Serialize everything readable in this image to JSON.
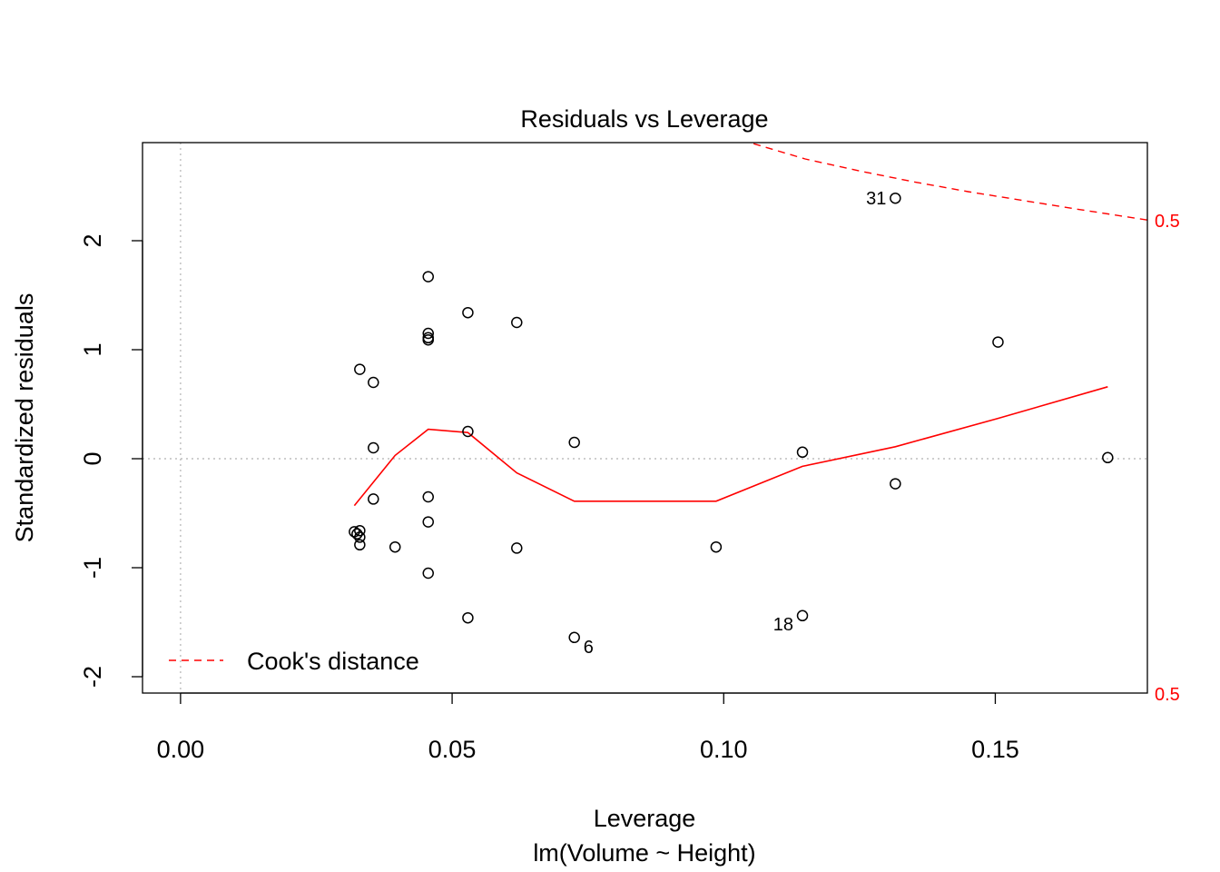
{
  "chart_data": {
    "type": "scatter",
    "title": "Residuals vs Leverage",
    "xlabel": "Leverage",
    "subtitle": "lm(Volume ~ Height)",
    "ylabel": "Standardized residuals",
    "xlim": [
      -0.007,
      0.178
    ],
    "ylim": [
      -2.15,
      2.9
    ],
    "x_ticks": [
      0.0,
      0.05,
      0.1,
      0.15
    ],
    "x_tick_labels": [
      "0.00",
      "0.05",
      "0.10",
      "0.15"
    ],
    "y_ticks": [
      -2,
      -1,
      0,
      1,
      2
    ],
    "y_tick_labels": [
      "-2",
      "-1",
      "0",
      "1",
      "2"
    ],
    "grid": false,
    "reference_lines": {
      "x": 0,
      "y": 0
    },
    "points": [
      {
        "x": 0.0456,
        "y": 1.67
      },
      {
        "x": 0.0529,
        "y": 1.34
      },
      {
        "x": 0.0619,
        "y": 1.25
      },
      {
        "x": 0.0456,
        "y": 1.15
      },
      {
        "x": 0.0456,
        "y": 1.11
      },
      {
        "x": 0.0456,
        "y": 1.09
      },
      {
        "x": 0.033,
        "y": 0.82
      },
      {
        "x": 0.0355,
        "y": 0.7
      },
      {
        "x": 0.0529,
        "y": 0.25
      },
      {
        "x": 0.0725,
        "y": 0.15
      },
      {
        "x": 0.0355,
        "y": 0.1
      },
      {
        "x": 0.0355,
        "y": -0.37
      },
      {
        "x": 0.0456,
        "y": -0.35
      },
      {
        "x": 0.0456,
        "y": -0.58
      },
      {
        "x": 0.032,
        "y": -0.67
      },
      {
        "x": 0.0325,
        "y": -0.69
      },
      {
        "x": 0.033,
        "y": -0.66
      },
      {
        "x": 0.033,
        "y": -0.72
      },
      {
        "x": 0.033,
        "y": -0.79
      },
      {
        "x": 0.0395,
        "y": -0.81
      },
      {
        "x": 0.0619,
        "y": -0.82
      },
      {
        "x": 0.0986,
        "y": -0.81
      },
      {
        "x": 0.0456,
        "y": -1.05
      },
      {
        "x": 0.0529,
        "y": -1.46
      },
      {
        "x": 0.0725,
        "y": -1.64
      },
      {
        "x": 0.1145,
        "y": 0.06
      },
      {
        "x": 0.1145,
        "y": -1.44
      },
      {
        "x": 0.1316,
        "y": -0.23
      },
      {
        "x": 0.1316,
        "y": 2.39
      },
      {
        "x": 0.1505,
        "y": 1.07
      },
      {
        "x": 0.1707,
        "y": 0.01
      }
    ],
    "point_labels": [
      {
        "text": "31",
        "x": 0.1316,
        "y": 2.39,
        "side": "left"
      },
      {
        "text": "6",
        "x": 0.0725,
        "y": -1.64,
        "side": "right-below"
      },
      {
        "text": "18",
        "x": 0.1145,
        "y": -1.44,
        "side": "left-below"
      }
    ],
    "smooth_line": {
      "color": "#ff0000",
      "x": [
        0.032,
        0.0395,
        0.0456,
        0.0529,
        0.0619,
        0.0725,
        0.0986,
        0.1145,
        0.1316,
        0.1505,
        0.1707
      ],
      "y": [
        -0.43,
        0.03,
        0.27,
        0.24,
        -0.13,
        -0.39,
        -0.39,
        -0.07,
        0.11,
        0.37,
        0.66
      ]
    },
    "cooks_contours": {
      "color": "#ff0000",
      "level": 0.5,
      "upper": {
        "x": [
          0.1055,
          0.115,
          0.125,
          0.135,
          0.145,
          0.155,
          0.165,
          0.178
        ],
        "y": [
          2.89,
          2.75,
          2.64,
          2.54,
          2.45,
          2.37,
          2.29,
          2.19
        ]
      },
      "right_labels": [
        "0.5",
        "0.5"
      ]
    },
    "legend": {
      "label": "Cook's distance",
      "placement": "bottom-left"
    }
  }
}
